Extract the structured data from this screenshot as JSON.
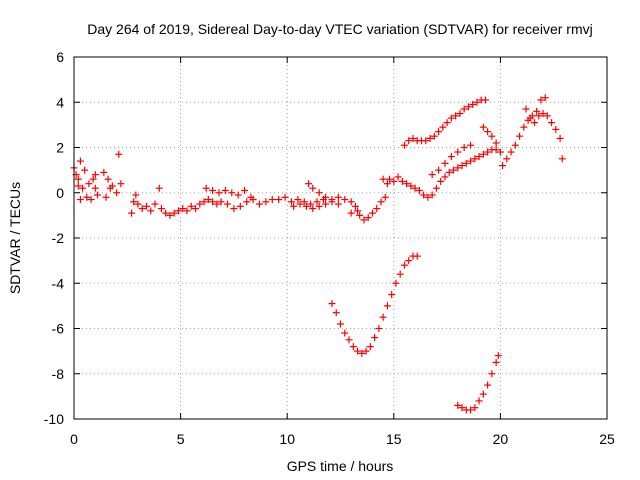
{
  "chart_data": {
    "type": "scatter",
    "title": "Day 264 of 2019, Sidereal Day-to-day VTEC variation (SDTVAR) for receiver rmvj",
    "xlabel": "GPS time / hours",
    "ylabel": "SDTVAR / TECUs",
    "xlim": [
      0,
      25
    ],
    "ylim": [
      -10,
      6
    ],
    "xticks": [
      0,
      5,
      10,
      15,
      20,
      25
    ],
    "yticks": [
      -10,
      -8,
      -6,
      -4,
      -2,
      0,
      2,
      4,
      6
    ],
    "grid": true,
    "marker": "plus",
    "color": "#ff0000",
    "series": [
      {
        "name": "SDTVAR",
        "points": [
          [
            0.0,
            1.1
          ],
          [
            0.1,
            0.8
          ],
          [
            0.2,
            0.6
          ],
          [
            0.3,
            1.4
          ],
          [
            0.4,
            0.2
          ],
          [
            0.5,
            1.0
          ],
          [
            0.6,
            -0.2
          ],
          [
            0.7,
            0.4
          ],
          [
            0.8,
            -0.3
          ],
          [
            0.9,
            0.6
          ],
          [
            1.0,
            0.2
          ],
          [
            1.1,
            -0.1
          ],
          [
            1.0,
            0.8
          ],
          [
            0.3,
            -0.3
          ],
          [
            0.2,
            0.3
          ],
          [
            1.4,
            0.9
          ],
          [
            1.6,
            0.6
          ],
          [
            1.8,
            0.3
          ],
          [
            2.0,
            0.0
          ],
          [
            2.2,
            0.4
          ],
          [
            1.5,
            -0.2
          ],
          [
            1.7,
            0.2
          ],
          [
            2.1,
            1.7
          ],
          [
            2.7,
            -0.9
          ],
          [
            2.8,
            -0.4
          ],
          [
            2.9,
            -0.1
          ],
          [
            3.0,
            -0.5
          ],
          [
            3.2,
            -0.7
          ],
          [
            3.4,
            -0.6
          ],
          [
            3.6,
            -0.8
          ],
          [
            3.8,
            -0.5
          ],
          [
            4.0,
            0.2
          ],
          [
            4.1,
            -0.7
          ],
          [
            4.3,
            -0.9
          ],
          [
            4.5,
            -1.0
          ],
          [
            4.7,
            -0.9
          ],
          [
            4.9,
            -0.8
          ],
          [
            5.1,
            -0.7
          ],
          [
            5.3,
            -0.8
          ],
          [
            5.5,
            -0.6
          ],
          [
            5.7,
            -0.7
          ],
          [
            5.9,
            -0.5
          ],
          [
            6.1,
            -0.4
          ],
          [
            6.3,
            -0.3
          ],
          [
            6.5,
            -0.4
          ],
          [
            6.7,
            -0.5
          ],
          [
            6.9,
            -0.4
          ],
          [
            6.2,
            0.2
          ],
          [
            6.5,
            0.1
          ],
          [
            6.8,
            0.0
          ],
          [
            7.1,
            0.1
          ],
          [
            7.4,
            0.0
          ],
          [
            7.7,
            -0.1
          ],
          [
            8.0,
            0.1
          ],
          [
            8.3,
            -0.2
          ],
          [
            7.2,
            -0.5
          ],
          [
            7.5,
            -0.7
          ],
          [
            7.8,
            -0.6
          ],
          [
            8.1,
            -0.4
          ],
          [
            8.4,
            -0.3
          ],
          [
            8.7,
            -0.5
          ],
          [
            9.0,
            -0.4
          ],
          [
            9.3,
            -0.3
          ],
          [
            9.6,
            -0.3
          ],
          [
            9.9,
            -0.2
          ],
          [
            10.2,
            -0.4
          ],
          [
            10.5,
            -0.3
          ],
          [
            10.8,
            -0.4
          ],
          [
            11.1,
            -0.5
          ],
          [
            11.4,
            -0.4
          ],
          [
            11.7,
            -0.3
          ],
          [
            10.3,
            -0.6
          ],
          [
            10.6,
            -0.5
          ],
          [
            10.9,
            -0.6
          ],
          [
            11.2,
            -0.7
          ],
          [
            11.5,
            -0.6
          ],
          [
            11.8,
            -0.5
          ],
          [
            12.1,
            -0.4
          ],
          [
            12.4,
            -0.5
          ],
          [
            11.0,
            0.4
          ],
          [
            11.2,
            0.2
          ],
          [
            11.5,
            0.0
          ],
          [
            11.8,
            -0.2
          ],
          [
            12.1,
            -0.3
          ],
          [
            12.4,
            -0.2
          ],
          [
            12.7,
            -0.3
          ],
          [
            13.0,
            -0.4
          ],
          [
            13.2,
            -0.6
          ],
          [
            13.4,
            -1.0
          ],
          [
            13.6,
            -1.2
          ],
          [
            13.8,
            -1.1
          ],
          [
            14.0,
            -0.9
          ],
          [
            14.2,
            -0.7
          ],
          [
            14.4,
            -0.4
          ],
          [
            14.6,
            -0.2
          ],
          [
            13.0,
            -0.9
          ],
          [
            13.3,
            -0.8
          ],
          [
            14.5,
            0.6
          ],
          [
            14.7,
            0.4
          ],
          [
            14.8,
            0.6
          ],
          [
            15.0,
            0.5
          ],
          [
            15.2,
            0.7
          ],
          [
            15.4,
            0.5
          ],
          [
            15.6,
            0.4
          ],
          [
            15.8,
            0.3
          ],
          [
            16.0,
            0.2
          ],
          [
            15.5,
            2.1
          ],
          [
            15.7,
            2.3
          ],
          [
            15.9,
            2.4
          ],
          [
            16.1,
            2.3
          ],
          [
            16.3,
            2.3
          ],
          [
            16.5,
            2.3
          ],
          [
            16.7,
            2.4
          ],
          [
            16.9,
            2.5
          ],
          [
            17.1,
            2.7
          ],
          [
            17.3,
            2.9
          ],
          [
            17.5,
            3.1
          ],
          [
            17.7,
            3.3
          ],
          [
            17.9,
            3.4
          ],
          [
            18.1,
            3.5
          ],
          [
            18.3,
            3.7
          ],
          [
            18.5,
            3.8
          ],
          [
            18.7,
            3.9
          ],
          [
            18.9,
            4.0
          ],
          [
            19.1,
            4.1
          ],
          [
            19.3,
            4.1
          ],
          [
            16.2,
            0.1
          ],
          [
            16.4,
            -0.1
          ],
          [
            16.6,
            -0.2
          ],
          [
            16.8,
            -0.1
          ],
          [
            17.0,
            0.2
          ],
          [
            17.2,
            0.5
          ],
          [
            17.4,
            0.7
          ],
          [
            17.6,
            0.9
          ],
          [
            17.8,
            1.0
          ],
          [
            18.0,
            1.1
          ],
          [
            18.2,
            1.2
          ],
          [
            18.4,
            1.3
          ],
          [
            18.6,
            1.4
          ],
          [
            18.8,
            1.5
          ],
          [
            19.0,
            1.6
          ],
          [
            19.2,
            1.7
          ],
          [
            19.4,
            1.8
          ],
          [
            19.6,
            1.9
          ],
          [
            19.8,
            1.9
          ],
          [
            19.2,
            2.9
          ],
          [
            19.4,
            2.7
          ],
          [
            19.6,
            2.5
          ],
          [
            19.8,
            2.2
          ],
          [
            20.0,
            1.8
          ],
          [
            16.8,
            0.8
          ],
          [
            17.1,
            1.0
          ],
          [
            17.4,
            1.3
          ],
          [
            17.7,
            1.6
          ],
          [
            18.0,
            1.8
          ],
          [
            18.3,
            2.0
          ],
          [
            18.6,
            2.1
          ],
          [
            20.1,
            1.2
          ],
          [
            20.3,
            1.5
          ],
          [
            20.5,
            1.8
          ],
          [
            20.7,
            2.1
          ],
          [
            20.9,
            2.5
          ],
          [
            21.1,
            2.9
          ],
          [
            21.3,
            3.2
          ],
          [
            21.5,
            3.4
          ],
          [
            21.7,
            3.6
          ],
          [
            21.9,
            4.1
          ],
          [
            22.1,
            4.2
          ],
          [
            21.2,
            3.7
          ],
          [
            21.4,
            3.3
          ],
          [
            21.6,
            3.1
          ],
          [
            21.8,
            3.4
          ],
          [
            22.0,
            3.5
          ],
          [
            22.2,
            3.4
          ],
          [
            22.4,
            3.1
          ],
          [
            22.6,
            2.8
          ],
          [
            22.8,
            2.4
          ],
          [
            22.9,
            1.5
          ],
          [
            12.1,
            -4.9
          ],
          [
            12.3,
            -5.3
          ],
          [
            12.5,
            -5.8
          ],
          [
            12.7,
            -6.2
          ],
          [
            12.9,
            -6.5
          ],
          [
            13.1,
            -6.8
          ],
          [
            13.3,
            -7.0
          ],
          [
            13.5,
            -7.1
          ],
          [
            13.7,
            -7.0
          ],
          [
            13.9,
            -6.8
          ],
          [
            14.1,
            -6.4
          ],
          [
            14.3,
            -6.0
          ],
          [
            14.5,
            -5.5
          ],
          [
            14.7,
            -5.0
          ],
          [
            14.9,
            -4.5
          ],
          [
            15.1,
            -4.0
          ],
          [
            15.3,
            -3.6
          ],
          [
            15.5,
            -3.2
          ],
          [
            15.7,
            -3.0
          ],
          [
            15.9,
            -2.8
          ],
          [
            16.1,
            -2.8
          ],
          [
            18.0,
            -9.4
          ],
          [
            18.2,
            -9.5
          ],
          [
            18.4,
            -9.6
          ],
          [
            18.6,
            -9.6
          ],
          [
            18.8,
            -9.5
          ],
          [
            19.0,
            -9.2
          ],
          [
            19.2,
            -8.9
          ],
          [
            19.4,
            -8.5
          ],
          [
            19.6,
            -8.0
          ],
          [
            19.8,
            -7.5
          ],
          [
            19.9,
            -7.2
          ]
        ]
      }
    ]
  }
}
